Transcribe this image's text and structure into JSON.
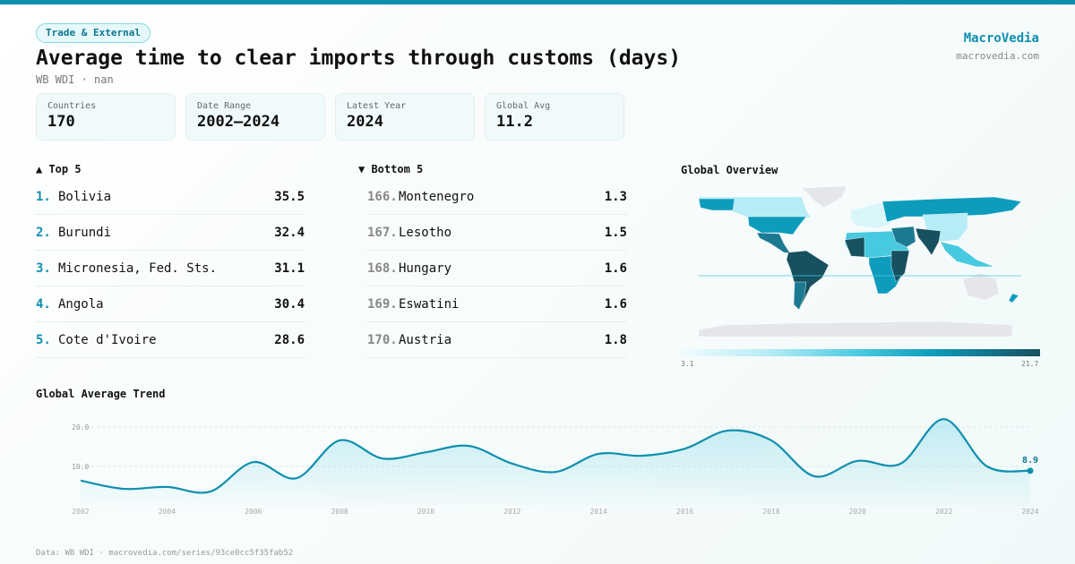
{
  "category_badge": "Trade & External",
  "title": "Average time to clear imports through customs (days)",
  "subtitle": "WB WDI · nan",
  "brand": {
    "name": "MacroVedia",
    "url": "macrovedia.com"
  },
  "stats": [
    {
      "label": "Countries",
      "value": "170"
    },
    {
      "label": "Date Range",
      "value": "2002–2024"
    },
    {
      "label": "Latest Year",
      "value": "2024"
    },
    {
      "label": "Global Avg",
      "value": "11.2"
    }
  ],
  "top5": {
    "heading": "▲ Top 5",
    "items": [
      {
        "rank": "1.",
        "name": "Bolivia",
        "value": "35.5"
      },
      {
        "rank": "2.",
        "name": "Burundi",
        "value": "32.4"
      },
      {
        "rank": "3.",
        "name": "Micronesia, Fed. Sts.",
        "value": "31.1"
      },
      {
        "rank": "4.",
        "name": "Angola",
        "value": "30.4"
      },
      {
        "rank": "5.",
        "name": "Cote d'Ivoire",
        "value": "28.6"
      }
    ]
  },
  "bottom5": {
    "heading": "▼ Bottom 5",
    "items": [
      {
        "rank": "166.",
        "name": "Montenegro",
        "value": "1.3"
      },
      {
        "rank": "167.",
        "name": "Lesotho",
        "value": "1.5"
      },
      {
        "rank": "168.",
        "name": "Hungary",
        "value": "1.6"
      },
      {
        "rank": "169.",
        "name": "Eswatini",
        "value": "1.6"
      },
      {
        "rank": "170.",
        "name": "Austria",
        "value": "1.8"
      }
    ]
  },
  "map": {
    "heading": "Global Overview",
    "scale_min": "3.1",
    "scale_max": "21.7",
    "colors": [
      "#f1fbfd",
      "#47c9e0",
      "#0e9cbc",
      "#17505f"
    ],
    "no_data_color": "#e4e6e9"
  },
  "chart_data": {
    "type": "area",
    "title": "Global Average Trend",
    "x": [
      2002,
      2003,
      2004,
      2005,
      2006,
      2007,
      2008,
      2009,
      2010,
      2011,
      2012,
      2013,
      2014,
      2015,
      2016,
      2017,
      2018,
      2019,
      2020,
      2021,
      2022,
      2023,
      2024
    ],
    "values": [
      6.4,
      4.3,
      4.8,
      3.6,
      11.1,
      7.0,
      16.6,
      12.0,
      13.6,
      15.2,
      10.7,
      8.6,
      13.2,
      12.7,
      14.5,
      19.1,
      16.6,
      7.5,
      11.4,
      10.7,
      22.0,
      10.0,
      8.9
    ],
    "x_ticks": [
      "2002",
      "2004",
      "2006",
      "2008",
      "2010",
      "2012",
      "2014",
      "2016",
      "2018",
      "2020",
      "2022",
      "2024"
    ],
    "y_ticks": [
      "10.0",
      "20.0"
    ],
    "last_label": "8.9",
    "color": "#0e8fae",
    "grid": true
  },
  "footer": "Data: WB WDI · macrovedia.com/series/93ce0cc5f35fab52"
}
